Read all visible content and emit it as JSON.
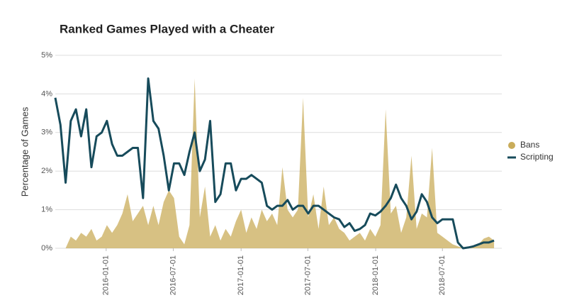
{
  "chart_data": {
    "type": "line",
    "title": "Ranked Games Played with a Cheater",
    "y_label": "Percentage of Games",
    "x": [
      "2015-08-16",
      "2015-08-30",
      "2015-09-13",
      "2015-09-27",
      "2015-10-11",
      "2015-10-25",
      "2015-11-08",
      "2015-11-22",
      "2015-12-06",
      "2015-12-20",
      "2016-01-03",
      "2016-01-17",
      "2016-01-31",
      "2016-02-14",
      "2016-02-28",
      "2016-03-13",
      "2016-03-27",
      "2016-04-10",
      "2016-04-24",
      "2016-05-08",
      "2016-05-22",
      "2016-06-05",
      "2016-06-19",
      "2016-07-03",
      "2016-07-17",
      "2016-07-31",
      "2016-08-14",
      "2016-08-28",
      "2016-09-11",
      "2016-09-25",
      "2016-10-09",
      "2016-10-23",
      "2016-11-06",
      "2016-11-20",
      "2016-12-04",
      "2016-12-18",
      "2017-01-01",
      "2017-01-15",
      "2017-01-29",
      "2017-02-12",
      "2017-02-26",
      "2017-03-12",
      "2017-03-26",
      "2017-04-09",
      "2017-04-23",
      "2017-05-07",
      "2017-05-21",
      "2017-06-04",
      "2017-06-18",
      "2017-07-02",
      "2017-07-16",
      "2017-07-30",
      "2017-08-13",
      "2017-08-27",
      "2017-09-10",
      "2017-09-24",
      "2017-10-08",
      "2017-10-22",
      "2017-11-05",
      "2017-11-19",
      "2017-12-03",
      "2017-12-17",
      "2017-12-31",
      "2018-01-14",
      "2018-01-28",
      "2018-02-11",
      "2018-02-25",
      "2018-03-11",
      "2018-03-25",
      "2018-04-08",
      "2018-04-22",
      "2018-05-06",
      "2018-05-20",
      "2018-06-03",
      "2018-06-17",
      "2018-07-01",
      "2018-07-15",
      "2018-07-29",
      "2018-08-12",
      "2018-08-26",
      "2018-09-09",
      "2018-09-23",
      "2018-10-07",
      "2018-10-21",
      "2018-11-04",
      "2018-11-18"
    ],
    "series": [
      {
        "name": "Bans",
        "type": "area",
        "color": "#c9ac5a",
        "values": [
          0,
          0,
          0,
          0.3,
          0.2,
          0.4,
          0.3,
          0.5,
          0.2,
          0.3,
          0.6,
          0.4,
          0.6,
          0.9,
          1.4,
          0.7,
          0.9,
          1.1,
          0.6,
          1.1,
          0.6,
          1.2,
          1.5,
          1.3,
          0.3,
          0.1,
          0.6,
          4.4,
          0.8,
          1.6,
          0.3,
          0.6,
          0.2,
          0.5,
          0.3,
          0.7,
          1.0,
          0.4,
          0.8,
          0.5,
          1.0,
          0.7,
          0.9,
          0.6,
          2.1,
          1.0,
          0.8,
          1.0,
          3.9,
          0.8,
          1.4,
          0.5,
          1.6,
          0.6,
          0.8,
          0.5,
          0.4,
          0.2,
          0.3,
          0.4,
          0.2,
          0.5,
          0.3,
          0.6,
          3.6,
          0.9,
          1.1,
          0.4,
          0.8,
          2.4,
          0.5,
          0.9,
          0.8,
          2.6,
          0.4,
          0.3,
          0.2,
          0.1,
          0.05,
          0,
          0,
          0.05,
          0.1,
          0.25,
          0.3,
          0.2
        ]
      },
      {
        "name": "Scripting",
        "type": "line",
        "color": "#174b5b",
        "values": [
          3.9,
          3.2,
          1.7,
          3.3,
          3.6,
          2.9,
          3.6,
          2.1,
          2.9,
          3.0,
          3.3,
          2.7,
          2.4,
          2.4,
          2.5,
          2.6,
          2.6,
          1.3,
          4.4,
          3.3,
          3.1,
          2.4,
          1.5,
          2.2,
          2.2,
          1.9,
          2.5,
          3.0,
          2.0,
          2.3,
          3.3,
          1.2,
          1.4,
          2.2,
          2.2,
          1.5,
          1.8,
          1.8,
          1.9,
          1.8,
          1.7,
          1.1,
          1.0,
          1.1,
          1.1,
          1.25,
          1.0,
          1.1,
          1.1,
          0.9,
          1.1,
          1.1,
          1.0,
          0.9,
          0.8,
          0.75,
          0.55,
          0.65,
          0.45,
          0.5,
          0.6,
          0.9,
          0.85,
          0.95,
          1.1,
          1.3,
          1.65,
          1.3,
          1.1,
          0.75,
          0.95,
          1.4,
          1.2,
          0.8,
          0.65,
          0.75,
          0.75,
          0.75,
          0.15,
          0,
          0.02,
          0.05,
          0.1,
          0.15,
          0.15,
          0.2
        ]
      }
    ],
    "xlim": [
      "2015-08-16",
      "2018-12-09"
    ],
    "xticks": [
      "2016-01-01",
      "2016-07-01",
      "2017-01-01",
      "2017-07-01",
      "2018-01-01",
      "2018-07-01"
    ],
    "ylim": [
      0,
      5
    ],
    "yticks": [
      {
        "value": 0,
        "label": "0%"
      },
      {
        "value": 1,
        "label": "1%"
      },
      {
        "value": 2,
        "label": "2%"
      },
      {
        "value": 3,
        "label": "3%"
      },
      {
        "value": 4,
        "label": "4%"
      },
      {
        "value": 5,
        "label": "5%"
      }
    ],
    "grid": true,
    "legend": "right"
  }
}
